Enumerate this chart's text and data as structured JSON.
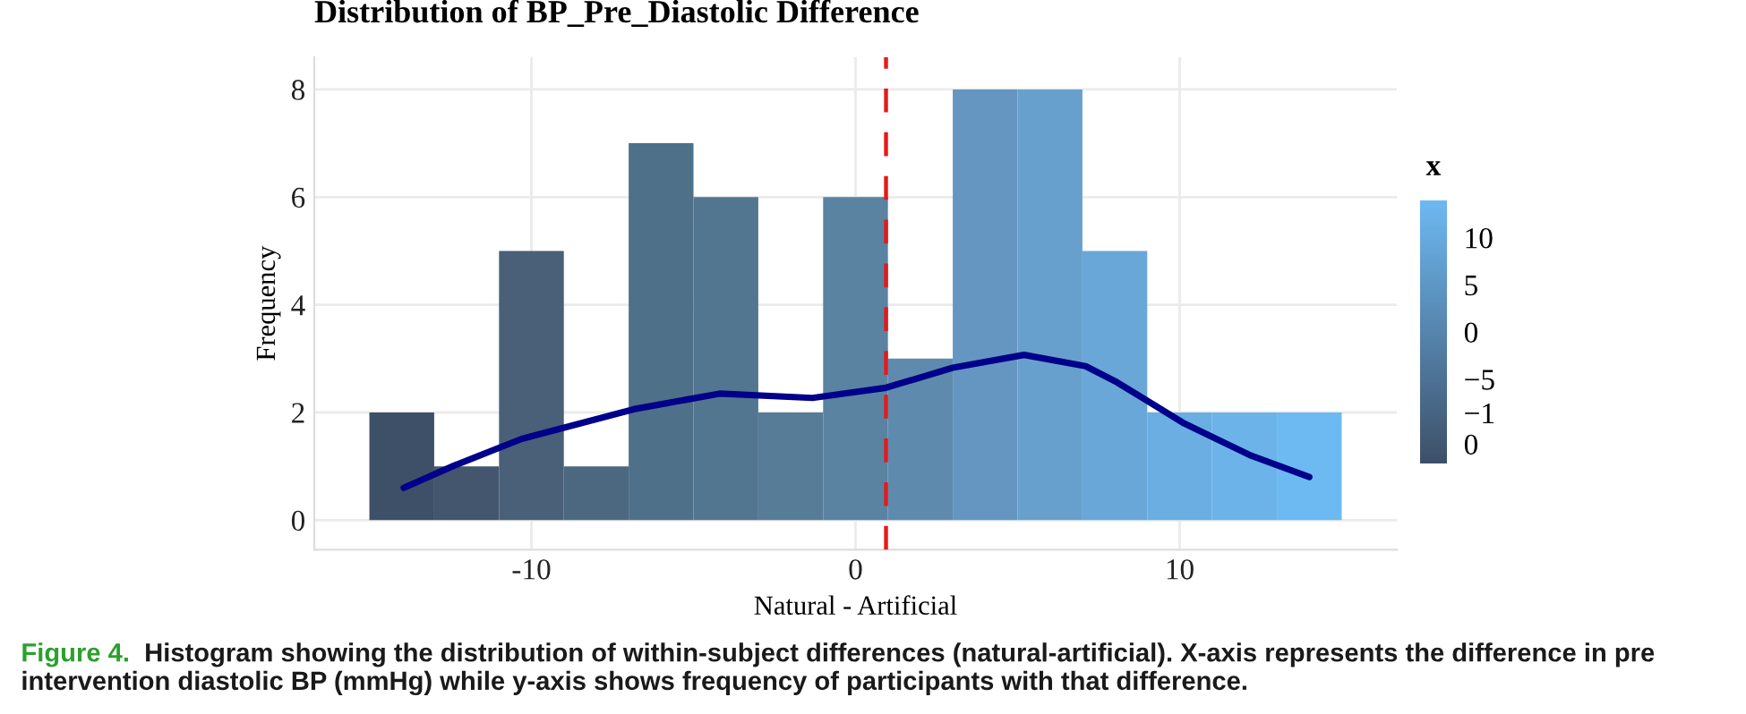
{
  "chart_data": {
    "type": "histogram",
    "title": "Distribution of BP_Pre_Diastolic Difference",
    "xlabel": "Natural - Artificial",
    "ylabel": "Frequency",
    "bins": [
      -15,
      -13,
      -11,
      -9,
      -7,
      -5,
      -3,
      -1,
      1,
      3,
      5,
      7,
      9,
      11,
      13,
      15
    ],
    "values": [
      2,
      1,
      5,
      1,
      7,
      6,
      2,
      6,
      3,
      8,
      8,
      5,
      2,
      2,
      2
    ],
    "colors": [
      "#3e5068",
      "#44566e",
      "#4a5f78",
      "#4b6880",
      "#4f7089",
      "#537690",
      "#577c98",
      "#5a83a2",
      "#5e8bad",
      "#6496c1",
      "#67a0cc",
      "#69a7d8",
      "#6aaee2",
      "#6cb3ea",
      "#6db9f2"
    ],
    "series": [
      {
        "type": "line",
        "color": "#00008b",
        "x": [
          -13.94,
          -12.4,
          -10.3,
          -6.85,
          -4.2,
          -1.33,
          0.94,
          3.0,
          5.2,
          7.1,
          8.07,
          10.1,
          12.2,
          14.0
        ],
        "values": [
          0.6,
          1.01,
          1.51,
          2.06,
          2.35,
          2.27,
          2.46,
          2.83,
          3.07,
          2.86,
          2.56,
          1.81,
          1.2,
          0.8
        ]
      }
    ],
    "ref_lines": [
      {
        "axis": "x",
        "value": 0.94,
        "color": "#e41a1c",
        "line_style": "dashed"
      }
    ],
    "xlim": [
      -16.7,
      16.7
    ],
    "xticks": [
      {
        "value": -10,
        "label": "-10"
      },
      0,
      10
    ],
    "ylim": [
      -0.55,
      8.6
    ],
    "yticks": [
      0,
      2,
      4,
      6,
      8
    ],
    "grid": true,
    "clabel": "x",
    "clim": [
      -14,
      14
    ],
    "cticks": [
      10,
      5,
      0,
      {
        "value": -5,
        "label": "−5"
      },
      {
        "value": -10,
        "label": "−1\n0"
      }
    ],
    "annotations": [
      "Figure 4.",
      "Histogram showing the distribution of within-subject differences (natural-artificial). X-axis represents the difference in pre intervention diastolic BP (mmHg) while y-axis shows frequency of participants with that difference."
    ]
  }
}
